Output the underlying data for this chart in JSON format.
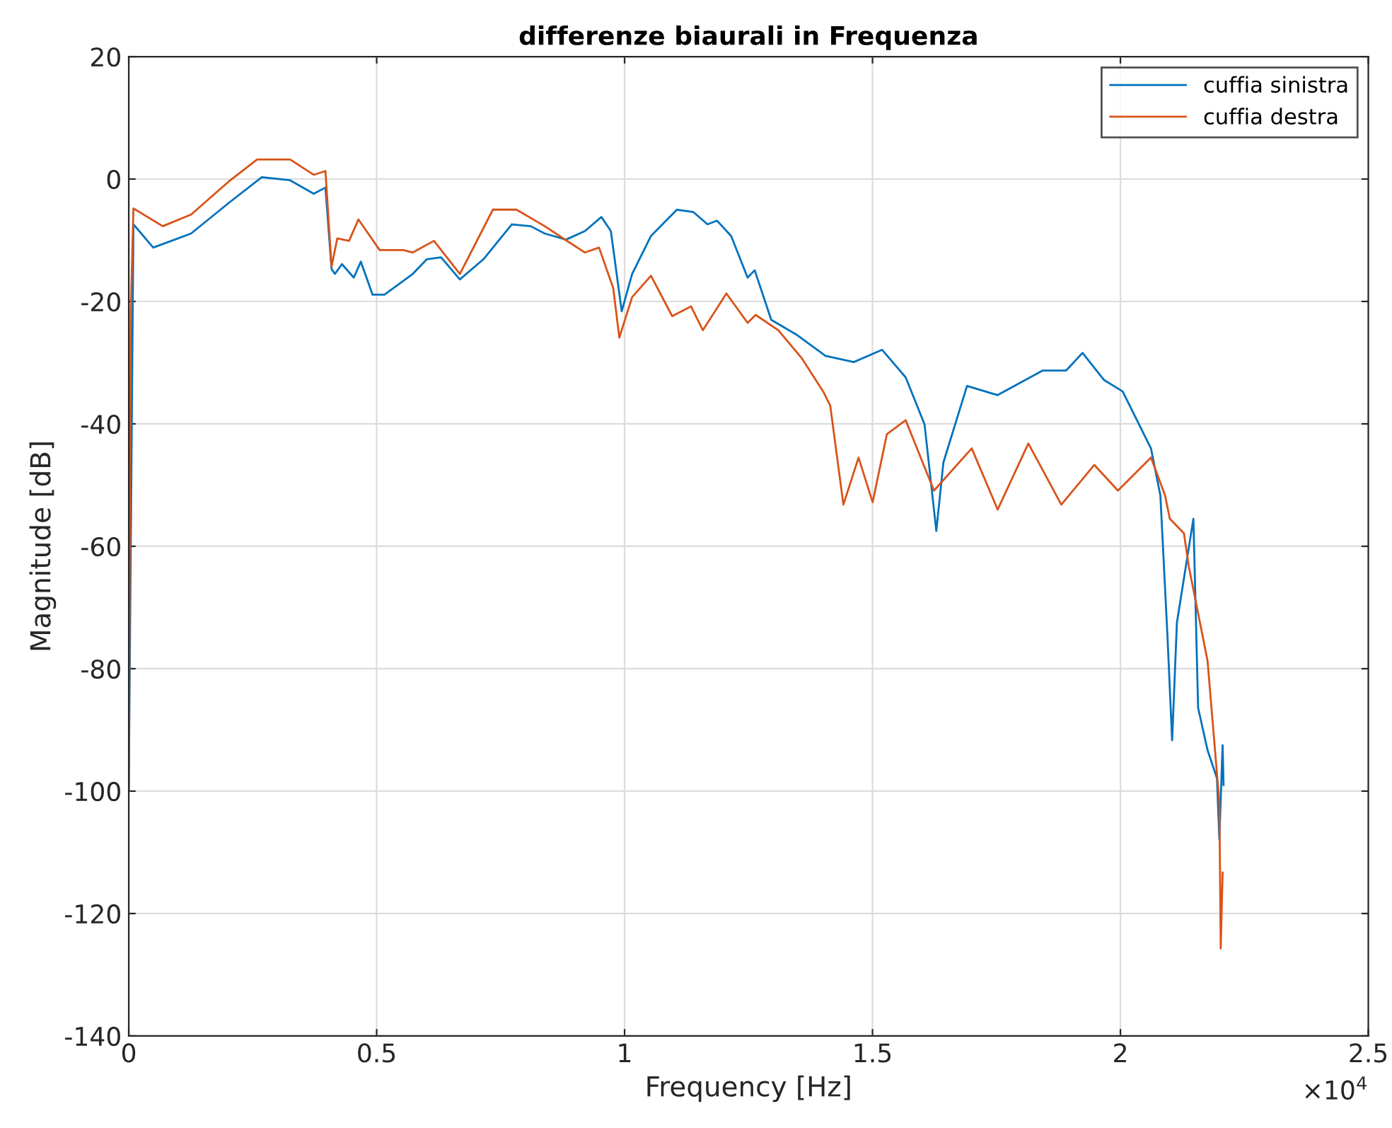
{
  "chart_data": {
    "type": "line",
    "title": "differenze biaurali in Frequenza",
    "xlabel": "Frequency [Hz]",
    "ylabel": "Magnitude [dB]",
    "annotations": [
      "×10$^{4}$"
    ],
    "xlim": [
      0,
      2.5
    ],
    "ylim": [
      -140,
      20
    ],
    "xticks": [
      0,
      0.5,
      1,
      1.5,
      2,
      2.5
    ],
    "yticks": [
      -140,
      -120,
      -100,
      -80,
      -60,
      -40,
      -20,
      0,
      20
    ],
    "grid": true,
    "legend": "top right",
    "series": [
      {
        "name": "cuffia sinistra",
        "color": "#0072bd",
        "x": [
          0,
          0.0094,
          0.0494,
          0.1256,
          0.2017,
          0.2683,
          0.3254,
          0.3729,
          0.3967,
          0.409,
          0.4157,
          0.43,
          0.4538,
          0.468,
          0.4918,
          0.5157,
          0.5728,
          0.6013,
          0.6299,
          0.6678,
          0.7154,
          0.7725,
          0.8105,
          0.839,
          0.8819,
          0.92,
          0.9532,
          0.9723,
          0.9942,
          1.0152,
          1.0532,
          1.1055,
          1.1388,
          1.1673,
          1.1864,
          1.2149,
          1.2481,
          1.2624,
          1.2958,
          1.3481,
          1.4052,
          1.4623,
          1.5194,
          1.5669,
          1.605,
          1.6287,
          1.643,
          1.6906,
          1.7524,
          1.8428,
          1.8903,
          1.9236,
          1.9665,
          2.0045,
          2.0616,
          2.0806,
          2.0949,
          2.1043,
          2.1139,
          2.1472,
          2.1567,
          2.1757,
          2.1947,
          2.1995,
          2.2061,
          2.208
        ],
        "values": [
          -100,
          -7.4,
          -11.2,
          -8.9,
          -3.9,
          0.3,
          -0.2,
          -2.4,
          -1.4,
          -14.7,
          -15.5,
          -13.9,
          -16.1,
          -13.5,
          -18.9,
          -18.9,
          -15.5,
          -13.1,
          -12.8,
          -16.4,
          -13.1,
          -7.4,
          -7.7,
          -8.9,
          -9.9,
          -8.5,
          -6.2,
          -8.5,
          -21.6,
          -15.5,
          -9.3,
          -5,
          -5.4,
          -7.4,
          -6.8,
          -9.3,
          -16.1,
          -14.9,
          -23,
          -25.5,
          -28.9,
          -29.9,
          -27.9,
          -32.4,
          -40.1,
          -57.5,
          -46.3,
          -33.8,
          -35.3,
          -31.3,
          -31.3,
          -28.4,
          -32.8,
          -34.7,
          -44,
          -51.7,
          -74.7,
          -91.7,
          -72.5,
          -55.5,
          -86.4,
          -93.3,
          -97.9,
          -107.9,
          -92.5,
          -99
        ]
      },
      {
        "name": "cuffia destra",
        "color": "#d95319",
        "x": [
          0,
          0.004,
          0.0094,
          0.0685,
          0.1256,
          0.2017,
          0.2588,
          0.3254,
          0.3729,
          0.3967,
          0.409,
          0.4205,
          0.4443,
          0.4632,
          0.506,
          0.5537,
          0.5728,
          0.6156,
          0.6678,
          0.7344,
          0.782,
          0.839,
          0.8819,
          0.92,
          0.9485,
          0.977,
          0.9894,
          1.0152,
          1.0532,
          1.096,
          1.134,
          1.1578,
          1.2053,
          1.2481,
          1.2643,
          1.31,
          1.3576,
          1.4005,
          1.4147,
          1.4413,
          1.4718,
          1.5003,
          1.5289,
          1.5669,
          1.624,
          1.7001,
          1.7524,
          1.8143,
          1.8808,
          1.9474,
          1.995,
          2.0568,
          2.0616,
          2.0901,
          2.0996,
          2.1282,
          2.1377,
          2.1757,
          2.1852,
          2.1995,
          2.2023,
          2.2061
        ],
        "values": [
          -100,
          -22,
          -4.8,
          -7.7,
          -5.8,
          -0.4,
          3.2,
          3.2,
          0.7,
          1.3,
          -14.3,
          -9.7,
          -10.1,
          -6.6,
          -11.6,
          -11.6,
          -12,
          -10.1,
          -15.5,
          -5,
          -5,
          -7.7,
          -10,
          -12,
          -11.2,
          -17.8,
          -25.9,
          -19.3,
          -15.8,
          -22.4,
          -20.8,
          -24.7,
          -18.7,
          -23.5,
          -22.2,
          -24.7,
          -29.3,
          -34.7,
          -37,
          -53.2,
          -45.5,
          -52.8,
          -41.7,
          -39.4,
          -50.9,
          -44,
          -54,
          -43.2,
          -53.2,
          -46.7,
          -50.9,
          -45.9,
          -45.5,
          -51.7,
          -55.5,
          -57.9,
          -63.2,
          -78.7,
          -87.9,
          -101.8,
          -125.7,
          -113.3
        ]
      }
    ]
  }
}
